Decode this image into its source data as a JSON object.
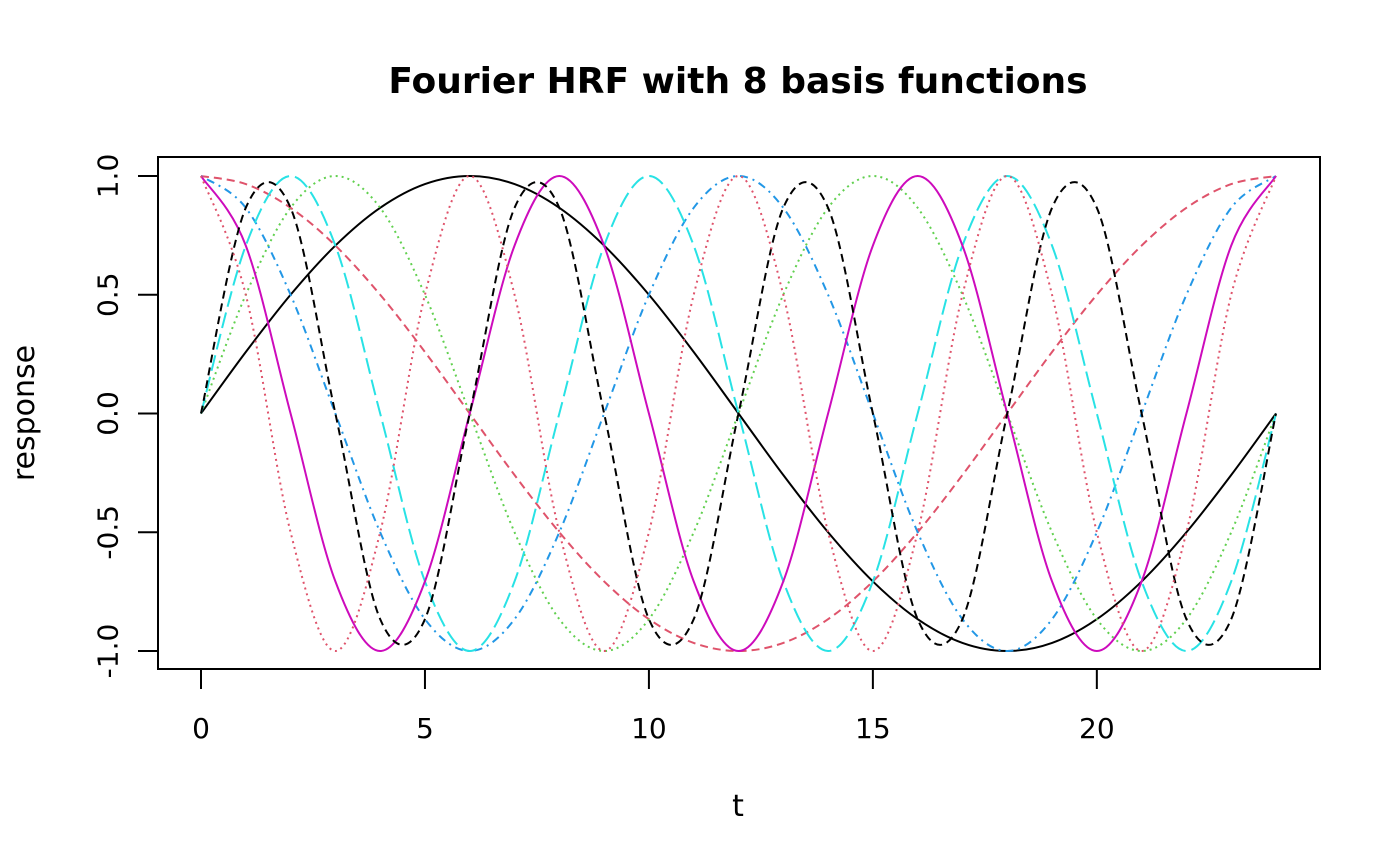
{
  "chart_data": {
    "type": "line",
    "title": "Fourier HRF with 8 basis functions",
    "xlabel": "t",
    "ylabel": "response",
    "xlim": [
      0,
      24
    ],
    "ylim": [
      -1,
      1
    ],
    "x_ticks": [
      0,
      5,
      10,
      15,
      20
    ],
    "y_ticks": [
      -1.0,
      -0.5,
      0.0,
      0.5,
      1.0
    ],
    "y_tick_labels": [
      "-1.0",
      "-0.5",
      "0.0",
      "0.5",
      "1.0"
    ],
    "grid": false,
    "legend": "none",
    "x": [
      0,
      1,
      2,
      3,
      4,
      5,
      6,
      7,
      8,
      9,
      10,
      11,
      12,
      13,
      14,
      15,
      16,
      17,
      18,
      19,
      20,
      21,
      22,
      23,
      24
    ],
    "series": [
      {
        "color": "#000000",
        "dash": "solid",
        "values": [
          0,
          0.259,
          0.5,
          0.707,
          0.866,
          0.966,
          1,
          0.966,
          0.866,
          0.707,
          0.5,
          0.259,
          0,
          -0.259,
          -0.5,
          -0.707,
          -0.866,
          -0.966,
          -1,
          -0.966,
          -0.866,
          -0.707,
          -0.5,
          -0.259,
          0
        ]
      },
      {
        "color": "#DF536B",
        "dash": "dashed",
        "values": [
          1,
          0.966,
          0.866,
          0.707,
          0.5,
          0.259,
          0,
          -0.259,
          -0.5,
          -0.707,
          -0.866,
          -0.966,
          -1,
          -0.966,
          -0.866,
          -0.707,
          -0.5,
          -0.259,
          0,
          0.259,
          0.5,
          0.707,
          0.866,
          0.966,
          1
        ]
      },
      {
        "color": "#61D04F",
        "dash": "dotted",
        "values": [
          0,
          0.5,
          0.866,
          1,
          0.866,
          0.5,
          0,
          -0.5,
          -0.866,
          -1,
          -0.866,
          -0.5,
          0,
          0.5,
          0.866,
          1,
          0.866,
          0.5,
          0,
          -0.5,
          -0.866,
          -1,
          -0.866,
          -0.5,
          0
        ]
      },
      {
        "color": "#2297E6",
        "dash": "dotdash",
        "values": [
          1,
          0.866,
          0.5,
          0,
          -0.5,
          -0.866,
          -1,
          -0.866,
          -0.5,
          0,
          0.5,
          0.866,
          1,
          0.866,
          0.5,
          0,
          -0.5,
          -0.866,
          -1,
          -0.866,
          -0.5,
          0,
          0.5,
          0.866,
          1
        ]
      },
      {
        "color": "#28E2E5",
        "dash": "longdash",
        "values": [
          0,
          0.707,
          1,
          0.707,
          0,
          -0.707,
          -1,
          -0.707,
          0,
          0.707,
          1,
          0.707,
          0,
          -0.707,
          -1,
          -0.707,
          0,
          0.707,
          1,
          0.707,
          0,
          -0.707,
          -1,
          -0.707,
          0
        ]
      },
      {
        "color": "#CD0BBC",
        "dash": "solid",
        "values": [
          1,
          0.707,
          0,
          -0.707,
          -1,
          -0.707,
          0,
          0.707,
          1,
          0.707,
          0,
          -0.707,
          -1,
          -0.707,
          0,
          0.707,
          1,
          0.707,
          0,
          -0.707,
          -1,
          -0.707,
          0,
          0.707,
          1
        ]
      },
      {
        "color": "#000000",
        "dash": "dashed",
        "values": [
          0,
          0.866,
          0.866,
          0,
          -0.866,
          -0.866,
          0,
          0.866,
          0.866,
          0,
          -0.866,
          -0.866,
          0,
          0.866,
          0.866,
          0,
          -0.866,
          -0.866,
          0,
          0.866,
          0.866,
          0,
          -0.866,
          -0.866,
          0
        ]
      },
      {
        "color": "#DF536B",
        "dash": "dotted",
        "values": [
          1,
          0.5,
          -0.5,
          -1,
          -0.5,
          0.5,
          1,
          0.5,
          -0.5,
          -1,
          -0.5,
          0.5,
          1,
          0.5,
          -0.5,
          -1,
          -0.5,
          0.5,
          1,
          0.5,
          -0.5,
          -1,
          -0.5,
          0.5,
          1
        ]
      }
    ]
  }
}
